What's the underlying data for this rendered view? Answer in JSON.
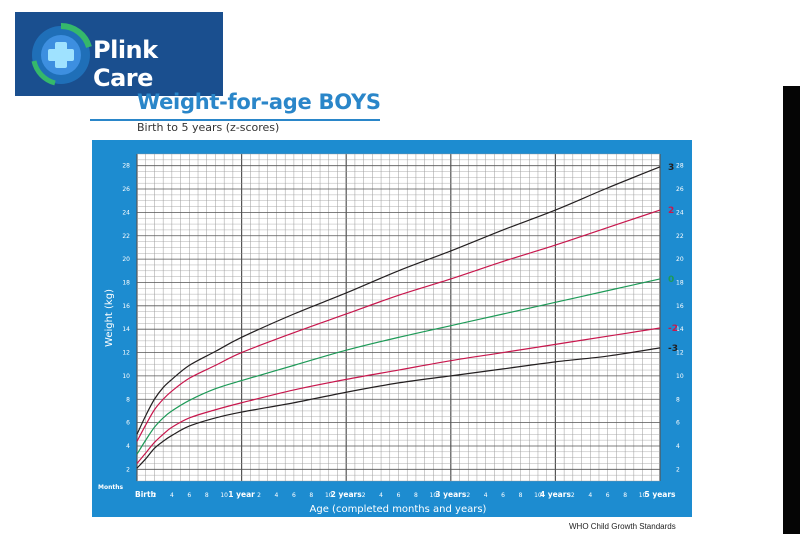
{
  "logo": {
    "brand_name": "Plink Care"
  },
  "header": {
    "title": "Weight-for-age BOYS",
    "subtitle": "Birth to 5 years (z-scores)"
  },
  "footer": {
    "source": "WHO Child Growth Standards"
  },
  "colors": {
    "panel": "#1d8cd0",
    "grid_minor": "#9a9a9a",
    "grid_major": "#555555",
    "logo_bg": "#1a4f8f",
    "title": "#2a86c9"
  },
  "chart_data": {
    "type": "line",
    "title": "Weight-for-age BOYS",
    "subtitle": "Birth to 5 years (z-scores)",
    "xlabel": "Age (completed months and years)",
    "ylabel": "Weight (kg)",
    "x_unit_label": "Months",
    "xlim": [
      0,
      60
    ],
    "ylim": [
      1,
      29
    ],
    "y_ticks": [
      2,
      4,
      6,
      8,
      10,
      12,
      14,
      16,
      18,
      20,
      22,
      24,
      26,
      28
    ],
    "x_tick_labels": [
      {
        "month": 0,
        "label": "Birth"
      },
      {
        "month": 2,
        "label": "2"
      },
      {
        "month": 4,
        "label": "4"
      },
      {
        "month": 6,
        "label": "6"
      },
      {
        "month": 8,
        "label": "8"
      },
      {
        "month": 10,
        "label": "10"
      },
      {
        "month": 12,
        "label": "1 year"
      },
      {
        "month": 14,
        "label": "2"
      },
      {
        "month": 16,
        "label": "4"
      },
      {
        "month": 18,
        "label": "6"
      },
      {
        "month": 20,
        "label": "8"
      },
      {
        "month": 22,
        "label": "10"
      },
      {
        "month": 24,
        "label": "2 years"
      },
      {
        "month": 26,
        "label": "2"
      },
      {
        "month": 28,
        "label": "4"
      },
      {
        "month": 30,
        "label": "6"
      },
      {
        "month": 32,
        "label": "8"
      },
      {
        "month": 34,
        "label": "10"
      },
      {
        "month": 36,
        "label": "3 years"
      },
      {
        "month": 38,
        "label": "2"
      },
      {
        "month": 40,
        "label": "4"
      },
      {
        "month": 42,
        "label": "6"
      },
      {
        "month": 44,
        "label": "8"
      },
      {
        "month": 46,
        "label": "10"
      },
      {
        "month": 48,
        "label": "4 years"
      },
      {
        "month": 50,
        "label": "2"
      },
      {
        "month": 52,
        "label": "4"
      },
      {
        "month": 54,
        "label": "6"
      },
      {
        "month": 56,
        "label": "8"
      },
      {
        "month": 58,
        "label": "10"
      },
      {
        "month": 60,
        "label": "5 years"
      }
    ],
    "grid": true,
    "x": [
      0,
      1,
      2,
      3,
      4,
      6,
      9,
      12,
      18,
      24,
      30,
      36,
      42,
      48,
      54,
      60
    ],
    "series": [
      {
        "name": "3",
        "color": "#231f20",
        "values": [
          5.0,
          6.6,
          8.0,
          9.0,
          9.7,
          10.9,
          12.1,
          13.3,
          15.3,
          17.1,
          19.0,
          20.7,
          22.5,
          24.2,
          26.1,
          27.9
        ]
      },
      {
        "name": "2",
        "color": "#c8174d",
        "values": [
          4.4,
          5.8,
          7.1,
          8.0,
          8.7,
          9.8,
          10.9,
          12.0,
          13.7,
          15.3,
          16.9,
          18.3,
          19.8,
          21.2,
          22.7,
          24.2
        ]
      },
      {
        "name": "0",
        "color": "#1d9a57",
        "values": [
          3.3,
          4.5,
          5.6,
          6.4,
          7.0,
          7.9,
          8.9,
          9.6,
          10.9,
          12.2,
          13.3,
          14.3,
          15.3,
          16.3,
          17.3,
          18.3
        ]
      },
      {
        "name": "-2",
        "color": "#c8174d",
        "values": [
          2.5,
          3.4,
          4.3,
          5.0,
          5.6,
          6.4,
          7.1,
          7.7,
          8.8,
          9.7,
          10.5,
          11.3,
          12.0,
          12.7,
          13.4,
          14.1
        ]
      },
      {
        "name": "-3",
        "color": "#231f20",
        "values": [
          2.1,
          2.9,
          3.8,
          4.4,
          4.9,
          5.7,
          6.4,
          6.9,
          7.7,
          8.6,
          9.4,
          10.0,
          10.6,
          11.2,
          11.7,
          12.4
        ]
      }
    ]
  }
}
